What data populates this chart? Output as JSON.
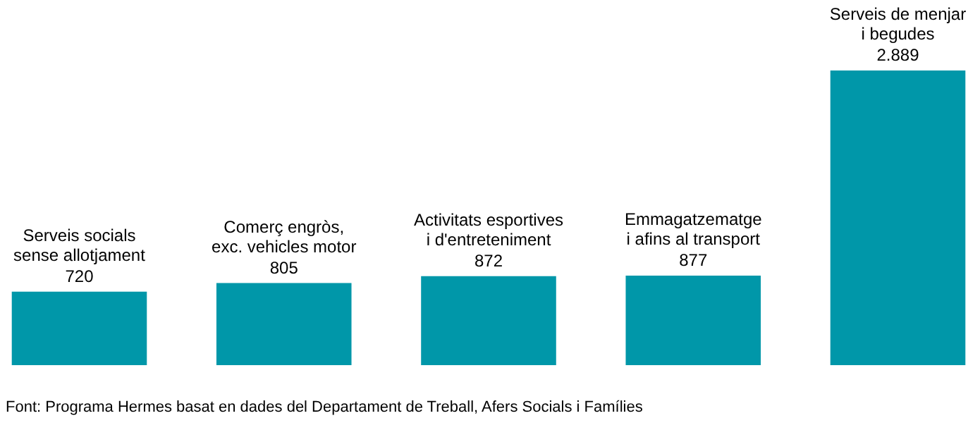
{
  "chart_data": {
    "type": "bar",
    "categories": [
      "Serveis socials\nsense allotjament",
      "Comerç engròs,\nexc. vehicles motor",
      "Activitats esportives\ni d'entreteniment",
      "Emmagatzematge\ni afins al transport",
      "Serveis de menjar\ni begudes"
    ],
    "values": [
      720,
      805,
      872,
      877,
      2889
    ],
    "value_labels": [
      "720",
      "805",
      "872",
      "877",
      "2.889"
    ],
    "color": "#0097a9",
    "annotations": [
      "Font: Programa Hermes basat en dades del Departament de Treball, Afers Socials i Famílies"
    ]
  }
}
